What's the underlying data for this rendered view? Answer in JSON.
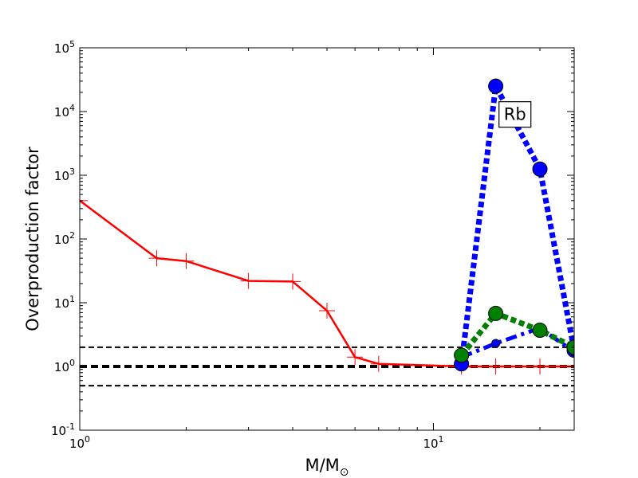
{
  "chart_data": {
    "type": "line",
    "title": "",
    "xlabel": "M/M",
    "xlabel_subscript": "⊙",
    "ylabel": "Overproduction factor",
    "xscale": "log",
    "yscale": "log",
    "xlim": [
      1,
      25
    ],
    "ylim": [
      0.1,
      100000
    ],
    "x_ticks": [
      {
        "value": 1,
        "base": "10",
        "exp": "0"
      },
      {
        "value": 10,
        "base": "10",
        "exp": "1"
      }
    ],
    "y_ticks": [
      {
        "value": 0.1,
        "base": "10",
        "exp": "-1"
      },
      {
        "value": 1,
        "base": "10",
        "exp": "0"
      },
      {
        "value": 10,
        "base": "10",
        "exp": "1"
      },
      {
        "value": 100,
        "base": "10",
        "exp": "2"
      },
      {
        "value": 1000,
        "base": "10",
        "exp": "3"
      },
      {
        "value": 10000,
        "base": "10",
        "exp": "4"
      },
      {
        "value": 100000,
        "base": "10",
        "exp": "5"
      }
    ],
    "reference_lines": [
      {
        "y": 2,
        "style": "dashed",
        "color": "#000000"
      },
      {
        "y": 1,
        "style": "dashed-thick",
        "color": "#000000"
      },
      {
        "y": 0.5,
        "style": "dashed",
        "color": "#000000"
      }
    ],
    "series": [
      {
        "color": "#ff0000",
        "line": "solid",
        "marker": "plus",
        "x": [
          1,
          1.65,
          2,
          3,
          4,
          5,
          6,
          7,
          12,
          15,
          20,
          25
        ],
        "y": [
          400,
          50,
          45,
          22,
          21.5,
          7.5,
          1.4,
          1.1,
          1.0,
          1.0,
          1.0,
          1.0
        ]
      },
      {
        "color": "#0000ff",
        "line": "dotted-thick",
        "marker": "circle",
        "x": [
          12,
          15,
          20,
          25
        ],
        "y": [
          1.1,
          25000,
          1250,
          1.8
        ]
      },
      {
        "color": "#0000ff",
        "line": "dashdot",
        "marker": "circle-small",
        "x": [
          12,
          15,
          20,
          25
        ],
        "y": [
          1.4,
          2.3,
          4.0,
          1.7
        ]
      },
      {
        "color": "#008000",
        "line": "dotted-thick",
        "marker": "circle",
        "x": [
          12,
          15,
          20,
          25
        ],
        "y": [
          1.5,
          6.8,
          3.7,
          2.0
        ]
      }
    ],
    "annotations": [
      {
        "text": "Rb",
        "x": 17,
        "y": 9000,
        "boxed": true
      }
    ],
    "grid": false,
    "legend": "none"
  }
}
